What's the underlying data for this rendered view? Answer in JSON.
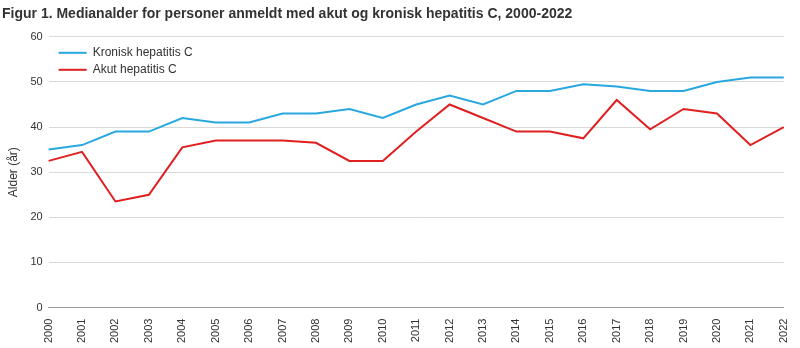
{
  "chart_data": {
    "type": "line",
    "title": "Figur 1. Medianalder for personer anmeldt med akut og kronisk hepatitis C, 2000-2022",
    "y_label": "Alder (år)",
    "categories": [
      "2000",
      "2001",
      "2002",
      "2003",
      "2004",
      "2005",
      "2006",
      "2007",
      "2008",
      "2009",
      "2010",
      "2011",
      "2012",
      "2013",
      "2014",
      "2015",
      "2016",
      "2017",
      "2018",
      "2019",
      "2020",
      "2021",
      "2022"
    ],
    "series": [
      {
        "name": "Kronisk hepatitis C",
        "color": "#29a8e0",
        "values": [
          35,
          36,
          39,
          39,
          42,
          41,
          41,
          43,
          43,
          44,
          42,
          45,
          47,
          45,
          48,
          48,
          49.5,
          49,
          48,
          48,
          50,
          51,
          51
        ]
      },
      {
        "name": "Akut hepatitis C",
        "color": "#e02020",
        "values": [
          32.5,
          34.5,
          23.5,
          25,
          35.5,
          37,
          37,
          37,
          36.5,
          32.5,
          32.5,
          39,
          45,
          42,
          39,
          39,
          37.5,
          46,
          39.5,
          44,
          43,
          36,
          40
        ]
      }
    ],
    "ylim": [
      0,
      60
    ],
    "yticks": [
      0,
      10,
      20,
      30,
      40,
      50,
      60
    ],
    "grid": true,
    "legend": "upper left"
  }
}
